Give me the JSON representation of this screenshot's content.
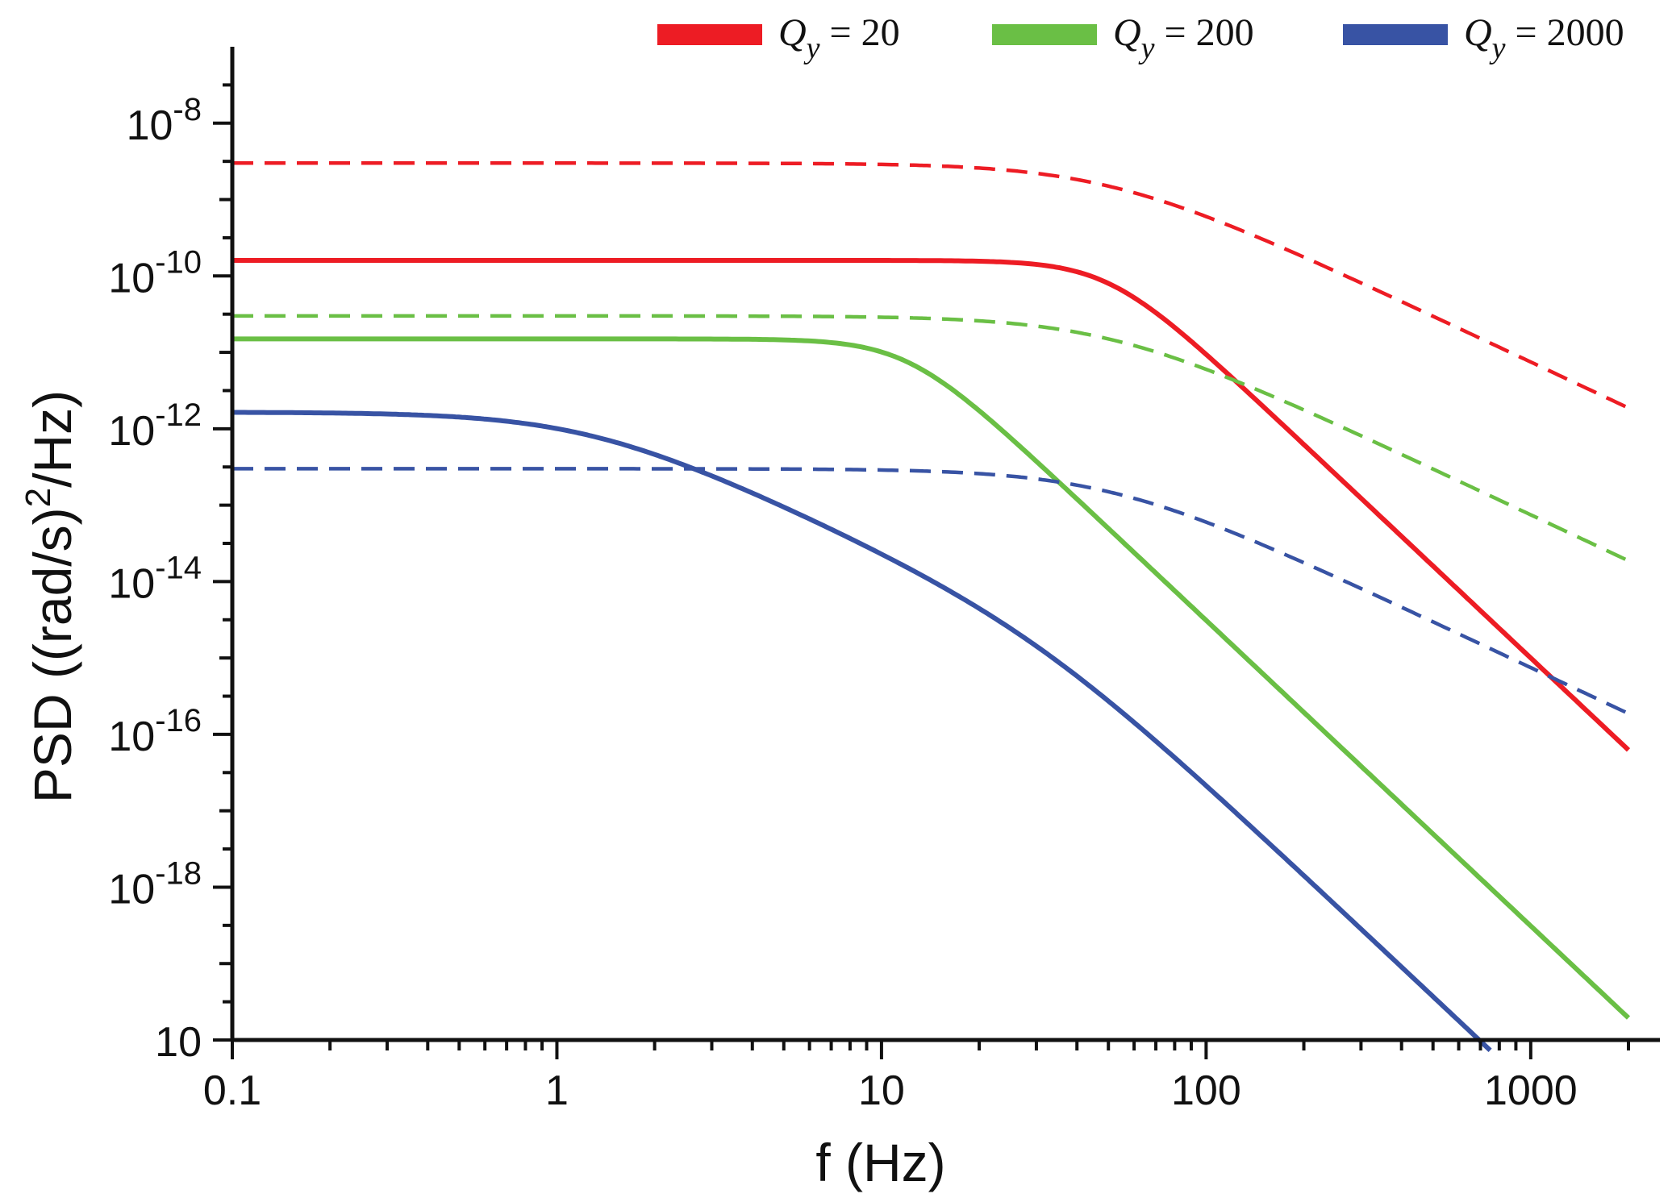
{
  "chart_data": {
    "type": "line",
    "xlabel": "f (Hz)",
    "ylabel_base": "PSD ((rad/s)",
    "ylabel_exp": "2",
    "ylabel_tail": "/Hz)",
    "xscale": "log",
    "yscale": "log",
    "xlim": [
      0.1,
      2500
    ],
    "ylim_exp": [
      -20,
      -7
    ],
    "x_ticks": [
      {
        "value": 0.1,
        "label": "0.1"
      },
      {
        "value": 1,
        "label": "1"
      },
      {
        "value": 10,
        "label": "10"
      },
      {
        "value": 100,
        "label": "100"
      },
      {
        "value": 1000,
        "label": "1000"
      }
    ],
    "y_ticks": [
      {
        "exp": -8,
        "base": "10",
        "sup": "-8"
      },
      {
        "exp": -10,
        "base": "10",
        "sup": "-10"
      },
      {
        "exp": -12,
        "base": "10",
        "sup": "-12"
      },
      {
        "exp": -14,
        "base": "10",
        "sup": "-14"
      },
      {
        "exp": -16,
        "base": "10",
        "sup": "-16"
      },
      {
        "exp": -18,
        "base": "10",
        "sup": "-18"
      },
      {
        "exp": -20,
        "base": "10",
        "sup": ""
      }
    ],
    "legend": [
      {
        "var": "Q",
        "sub": "y",
        "rest": " = 20",
        "color": "#ed1c24"
      },
      {
        "var": "Q",
        "sub": "y",
        "rest": " = 200",
        "color": "#6abf45"
      },
      {
        "var": "Q",
        "sub": "y",
        "rest": " = 2000",
        "color": "#3853a4"
      }
    ],
    "series": [
      {
        "name": "Qy=20 solid",
        "color": "#ed1c24",
        "dashed": false,
        "A": 1.6e-10,
        "fc": 50,
        "n": 4,
        "fmax": 2000
      },
      {
        "name": "Qy=20 dashed",
        "color": "#ed1c24",
        "dashed": true,
        "A": 3e-09,
        "fc": 50,
        "n": 2,
        "fmax": 2000
      },
      {
        "name": "Qy=200 solid",
        "color": "#6abf45",
        "dashed": false,
        "A": 1.5e-11,
        "fc": 12,
        "n": 4,
        "fmax": 2000
      },
      {
        "name": "Qy=200 dashed",
        "color": "#6abf45",
        "dashed": true,
        "A": 3e-11,
        "fc": 50,
        "n": 2,
        "fmax": 2000
      },
      {
        "name": "Qy=2000 solid",
        "color": "#3853a4",
        "dashed": false,
        "A": 1.65e-12,
        "fc": 1.25,
        "n": 2,
        "fc2": 30,
        "n2": 2,
        "fmax": 750
      },
      {
        "name": "Qy=2000 dashed",
        "color": "#3853a4",
        "dashed": true,
        "A": 3e-13,
        "fc": 50,
        "n": 2,
        "fmax": 2000
      }
    ]
  }
}
